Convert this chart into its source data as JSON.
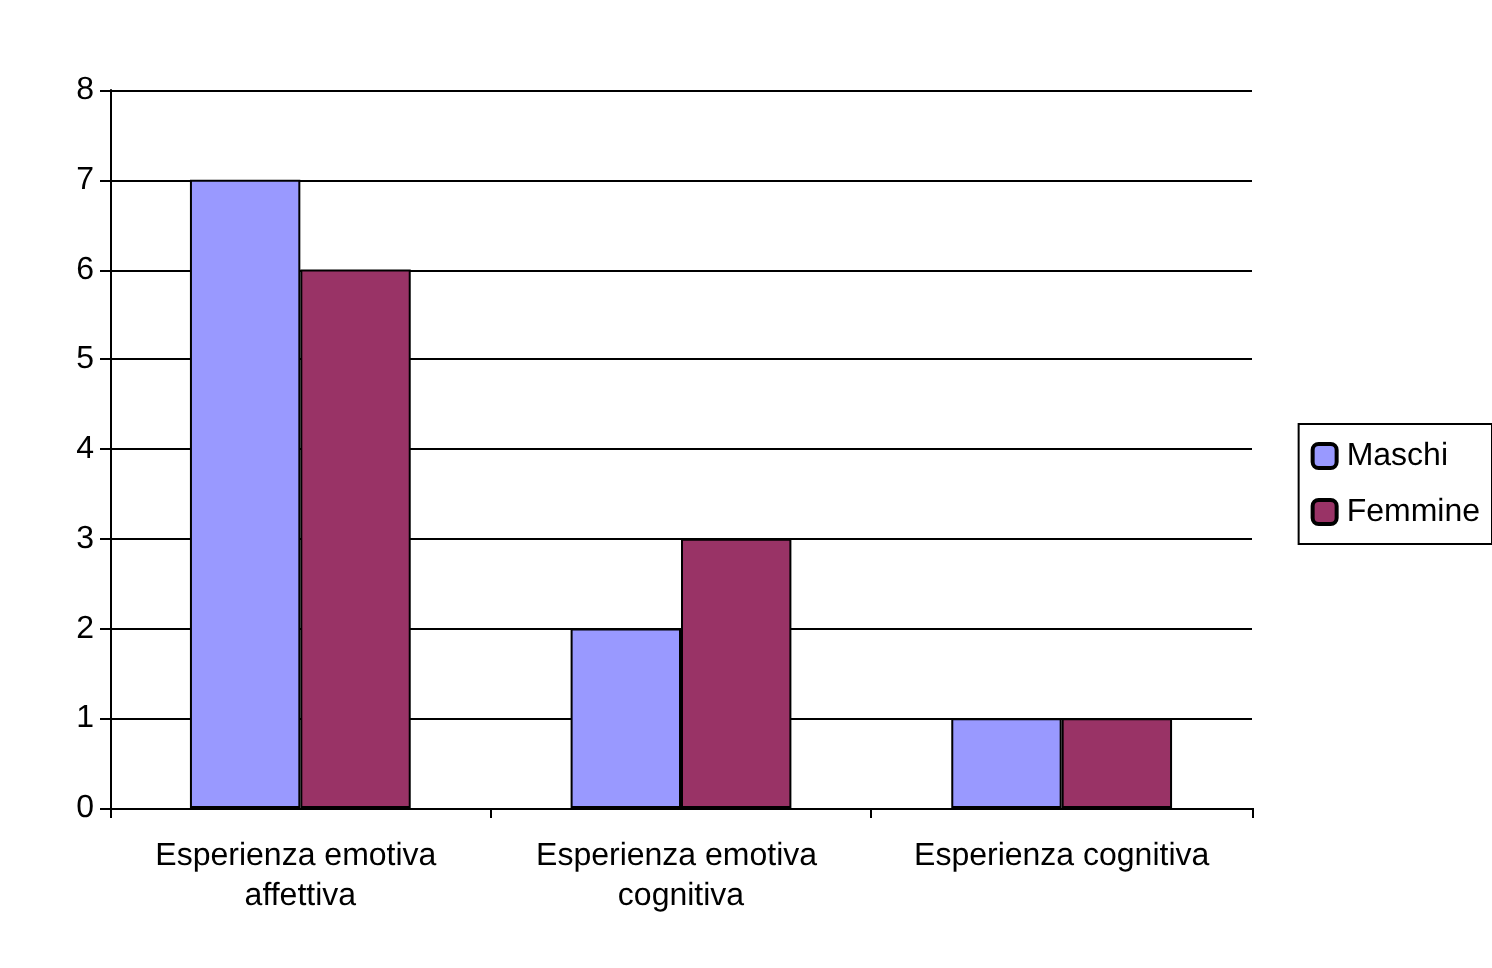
{
  "chart_data": {
    "type": "bar",
    "categories": [
      "Esperienza emotiva affettiva",
      "Esperienza emotiva cognitiva",
      "Esperienza cognitiva"
    ],
    "series": [
      {
        "name": "Maschi",
        "color": "#9999ff",
        "values": [
          7,
          2,
          1
        ]
      },
      {
        "name": "Femmine",
        "color": "#993366",
        "values": [
          6,
          3,
          1
        ]
      }
    ],
    "ylim": [
      0,
      8
    ],
    "yticks": [
      0,
      1,
      2,
      3,
      4,
      5,
      6,
      7,
      8
    ],
    "grid": "y",
    "legend": "right"
  }
}
